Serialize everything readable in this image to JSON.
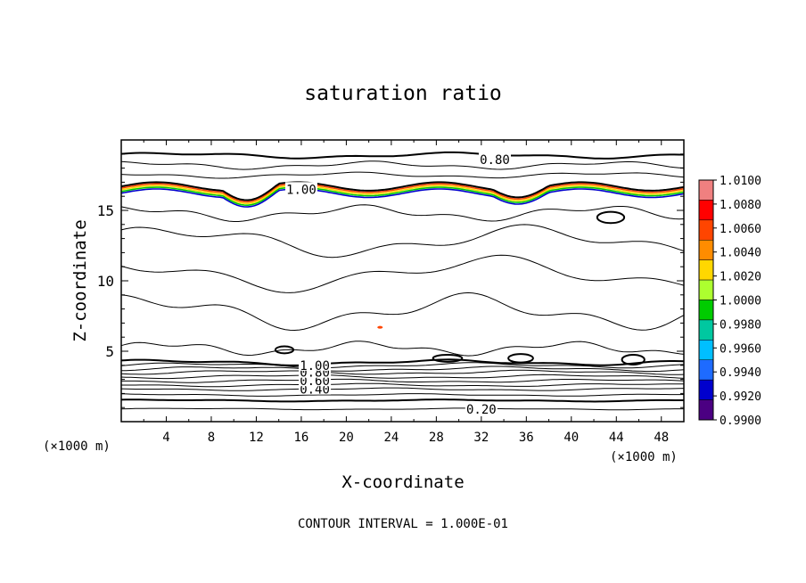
{
  "chart_data": {
    "type": "contour",
    "title": "saturation ratio",
    "xlabel": "X-coordinate",
    "ylabel": "Z-coordinate",
    "x_unit": "(×1000 m)",
    "z_unit": "(×1000 m)",
    "xlim": [
      0,
      50
    ],
    "ylim": [
      0,
      20
    ],
    "x_ticks": [
      "4",
      "8",
      "12",
      "16",
      "20",
      "24",
      "28",
      "32",
      "36",
      "40",
      "44",
      "48"
    ],
    "y_ticks": [
      "5",
      "10",
      "15"
    ],
    "contour_labels": [
      {
        "text": "0.80",
        "x": 33.2,
        "z": 18.6
      },
      {
        "text": "1.00",
        "x": 16.0,
        "z": 16.5
      },
      {
        "text": "0.40",
        "x": 17.2,
        "z": 2.3
      },
      {
        "text": "0.20",
        "x": 32.0,
        "z": 0.9
      },
      {
        "text": "0.60",
        "x": 17.2,
        "z": 2.9
      },
      {
        "text": "0.80",
        "x": 17.2,
        "z": 3.5
      },
      {
        "text": "1.00",
        "x": 17.2,
        "z": 4.0
      }
    ],
    "footer": "CONTOUR INTERVAL = 1.000E-01",
    "colorbar": {
      "labels": [
        "1.0100",
        "1.0080",
        "1.0060",
        "1.0040",
        "1.0020",
        "1.0000",
        "0.9980",
        "0.9960",
        "0.9940",
        "0.9920",
        "0.9900"
      ],
      "colors": [
        "#f08080",
        "#ff0000",
        "#ff4500",
        "#ff8c00",
        "#ffd700",
        "#adff2f",
        "#00cc00",
        "#00c8a0",
        "#00bfff",
        "#1e6bff",
        "#0000cd",
        "#4b0082"
      ]
    }
  }
}
